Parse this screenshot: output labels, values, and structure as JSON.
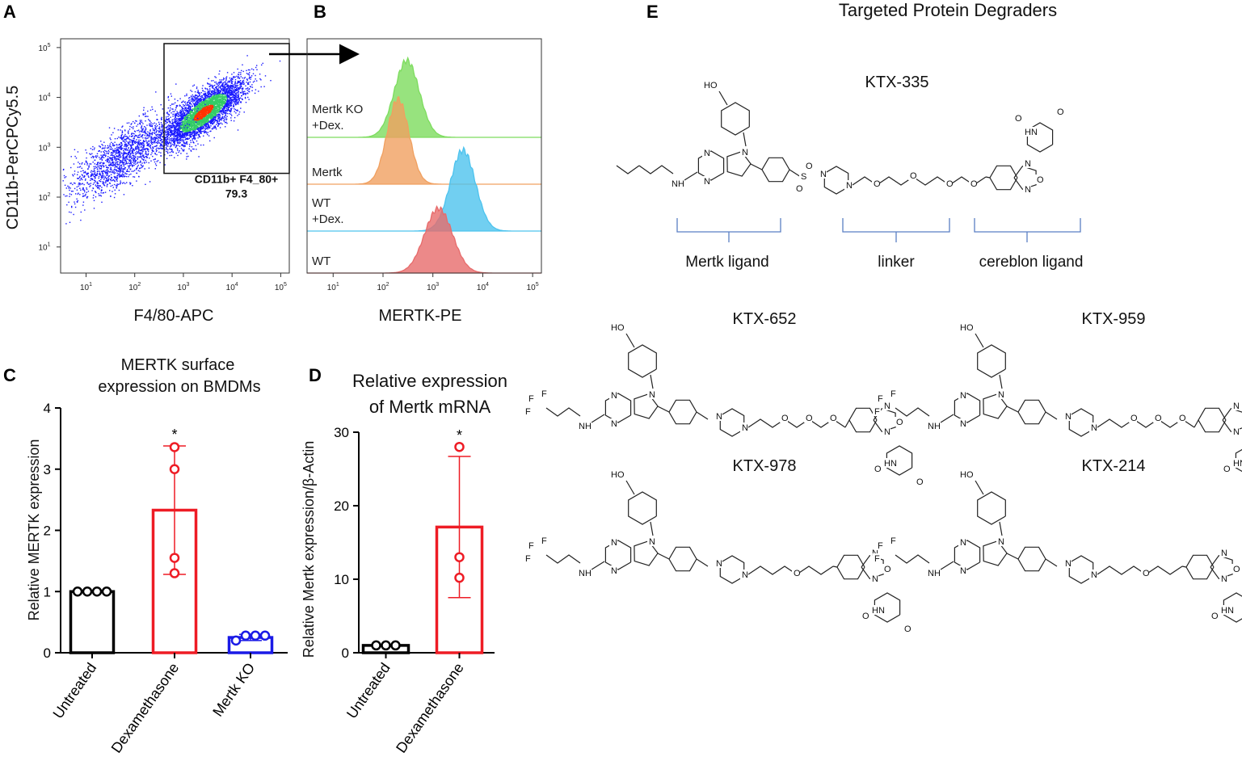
{
  "panel_letters": {
    "a": "A",
    "b": "B",
    "c": "C",
    "d": "D",
    "e": "E"
  },
  "chart_data": [
    {
      "id": "A",
      "type": "scatter",
      "xlabel": "F4/80-APC",
      "ylabel": "CD11b-PerCPCy5.5",
      "xscale": "log",
      "yscale": "log",
      "xlim": [
        3,
        150000
      ],
      "ylim": [
        3,
        150000
      ],
      "x_ticks": [
        "10^1",
        "10^2",
        "10^3",
        "10^4",
        "10^5"
      ],
      "y_ticks": [
        "10^1",
        "10^2",
        "10^3",
        "10^4",
        "10^5"
      ],
      "gate": {
        "label": "CD11b+ F4_80+",
        "value": "79.3",
        "x_range": [
          400,
          150000
        ],
        "y_range": [
          300,
          120000
        ]
      },
      "clusters": [
        {
          "x_center": 2500,
          "y_center": 5000,
          "spread_dex": 0.45,
          "density": "high"
        },
        {
          "x_center": 60,
          "y_center": 700,
          "spread_dex": 0.6,
          "density": "low"
        }
      ],
      "colors": {
        "low": "#1a1aff",
        "mid": "#33cc66",
        "high": "#ff3300"
      }
    },
    {
      "id": "B",
      "type": "area",
      "xlabel": "MERTK-PE",
      "xscale": "log",
      "xlim": [
        3,
        150000
      ],
      "x_ticks": [
        "10^1",
        "10^2",
        "10^3",
        "10^4",
        "10^5"
      ],
      "series": [
        {
          "name": "Mertk KO",
          "name2": "+Dex.",
          "peak": 300,
          "spread_dex": 0.25,
          "color": "#7ddc5e"
        },
        {
          "name": "Mertk",
          "name2": "",
          "peak": 200,
          "spread_dex": 0.22,
          "color": "#f0a060"
        },
        {
          "name": "WT",
          "name2": "+Dex.",
          "peak": 4000,
          "spread_dex": 0.25,
          "color": "#4dc3ee"
        },
        {
          "name": "WT",
          "name2": "",
          "peak": 1300,
          "spread_dex": 0.28,
          "color": "#e76b6b"
        }
      ]
    },
    {
      "id": "C",
      "type": "bar",
      "title": "MERTK surface",
      "title2": "expression on BMDMs",
      "ylabel": "Relative MERTK expression",
      "ylim": [
        0,
        4
      ],
      "y_ticks": [
        "0",
        "1",
        "2",
        "3",
        "4"
      ],
      "categories": [
        "Untreated",
        "Dexamethasone",
        "Mertk KO"
      ],
      "values": [
        1.0,
        2.33,
        0.25
      ],
      "errors": [
        0.0,
        1.05,
        0.05
      ],
      "points": [
        [
          1.0,
          1.0,
          1.0,
          1.0
        ],
        [
          3.36,
          3.0,
          1.55,
          1.3
        ],
        [
          0.2,
          0.28,
          0.28,
          0.28
        ]
      ],
      "colors": [
        "#000000",
        "#ee1c25",
        "#1a1ae6"
      ],
      "significance": [
        {
          "category": "Dexamethasone",
          "mark": "*"
        }
      ]
    },
    {
      "id": "D",
      "type": "bar",
      "title": "Relative expression",
      "title2": "of Mertk mRNA",
      "ylabel": "Relative Mertk expression/β-Actin",
      "ylim": [
        0,
        30
      ],
      "y_ticks": [
        "0",
        "10",
        "20",
        "30"
      ],
      "categories": [
        "Untreated",
        "Dexamethasone"
      ],
      "values": [
        1.0,
        17.1
      ],
      "errors": [
        0.0,
        9.6
      ],
      "points": [
        [
          1.0,
          1.0,
          1.0
        ],
        [
          28.0,
          13.0,
          10.2
        ]
      ],
      "colors": [
        "#000000",
        "#ee1c25"
      ],
      "significance": [
        {
          "category": "Dexamethasone",
          "mark": "*"
        }
      ]
    }
  ],
  "panel_e": {
    "title": "Targeted Protein Degraders",
    "compounds": [
      "KTX-335",
      "KTX-652",
      "KTX-959",
      "KTX-978",
      "KTX-214"
    ],
    "brackets": [
      "Mertk ligand",
      "linker",
      "cereblon ligand"
    ],
    "atoms": {
      "ho": "HO",
      "n": "N",
      "nh": "NH",
      "hn": "HN",
      "h": "H",
      "o": "O",
      "s": "S",
      "f": "F"
    }
  }
}
